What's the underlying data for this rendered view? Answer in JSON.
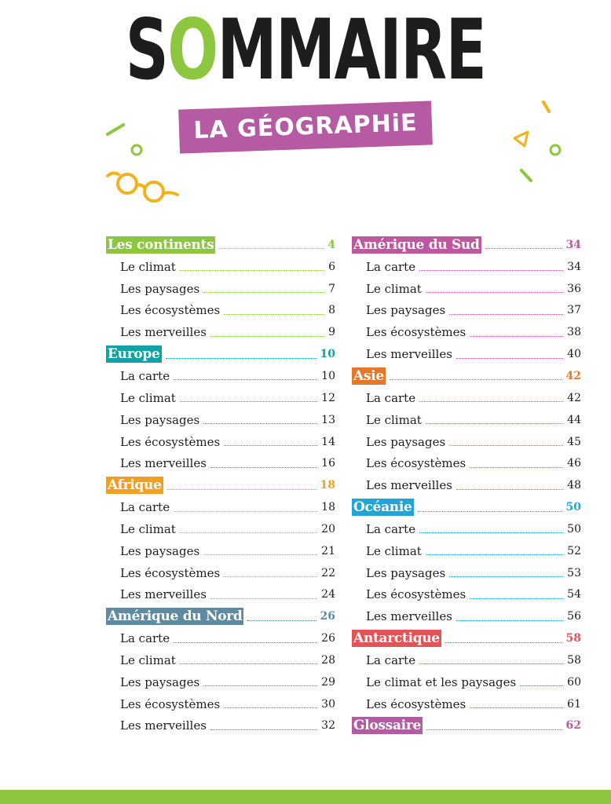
{
  "header": {
    "title_pre": "S",
    "title_accent": "O",
    "title_post": "MMAIRE",
    "subtitle": "LA GÉOGRAPHiE"
  },
  "colors": {
    "green": "#8dc63f",
    "teal": "#0fa3a5",
    "orange": "#f29f1f",
    "slate": "#5d8ba4",
    "magenta": "#c0569f",
    "burnt": "#e4772a",
    "blue": "#21a5d8",
    "red": "#e35454",
    "purple": "#b55aa3",
    "glasses": "#f2b21c"
  },
  "toc": {
    "left": [
      {
        "title": "Les continents",
        "page": "4",
        "color": "#8dc63f",
        "items": [
          {
            "label": "Le climat",
            "page": "6"
          },
          {
            "label": "Les paysages",
            "page": "7"
          },
          {
            "label": "Les écosystèmes",
            "page": "8"
          },
          {
            "label": "Les merveilles",
            "page": "9"
          }
        ]
      },
      {
        "title": "Europe",
        "page": "10",
        "color": "#0fa3a5",
        "items": [
          {
            "label": "La carte",
            "page": "10"
          },
          {
            "label": "Le climat",
            "page": "12"
          },
          {
            "label": "Les paysages",
            "page": "13"
          },
          {
            "label": "Les écosystèmes",
            "page": "14"
          },
          {
            "label": "Les merveilles",
            "page": "16"
          }
        ]
      },
      {
        "title": "Afrique",
        "page": "18",
        "color": "#f29f1f",
        "items": [
          {
            "label": "La carte",
            "page": "18"
          },
          {
            "label": "Le climat",
            "page": "20"
          },
          {
            "label": "Les paysages",
            "page": "21"
          },
          {
            "label": "Les écosystèmes",
            "page": "22"
          },
          {
            "label": "Les merveilles",
            "page": "24"
          }
        ]
      },
      {
        "title": "Amérique du Nord",
        "page": "26",
        "color": "#5d8ba4",
        "items": [
          {
            "label": "La carte",
            "page": "26"
          },
          {
            "label": "Le climat",
            "page": "28"
          },
          {
            "label": "Les paysages",
            "page": "29"
          },
          {
            "label": "Les écosystèmes",
            "page": "30"
          },
          {
            "label": "Les merveilles",
            "page": "32"
          }
        ]
      }
    ],
    "right": [
      {
        "title": "Amérique du Sud",
        "page": "34",
        "color": "#c0569f",
        "items": [
          {
            "label": "La carte",
            "page": "34"
          },
          {
            "label": "Le climat",
            "page": "36"
          },
          {
            "label": "Les paysages",
            "page": "37"
          },
          {
            "label": "Les écosystèmes",
            "page": "38"
          },
          {
            "label": "Les merveilles",
            "page": "40"
          }
        ]
      },
      {
        "title": "Asie",
        "page": "42",
        "color": "#e4772a",
        "items": [
          {
            "label": "La carte",
            "page": "42"
          },
          {
            "label": "Le climat",
            "page": "44"
          },
          {
            "label": "Les paysages",
            "page": "45"
          },
          {
            "label": "Les écosystèmes",
            "page": "46"
          },
          {
            "label": "Les merveilles",
            "page": "48"
          }
        ]
      },
      {
        "title": "Océanie",
        "page": "50",
        "color": "#21a5d8",
        "items": [
          {
            "label": "La carte",
            "page": "50"
          },
          {
            "label": "Le climat",
            "page": "52"
          },
          {
            "label": "Les paysages",
            "page": "53"
          },
          {
            "label": "Les écosystèmes",
            "page": "54"
          },
          {
            "label": "Les merveilles",
            "page": "56"
          }
        ]
      },
      {
        "title": "Antarctique",
        "page": "58",
        "color": "#e35454",
        "items": [
          {
            "label": "La carte",
            "page": "58"
          },
          {
            "label": "Le climat et les paysages",
            "page": "60"
          },
          {
            "label": "Les écosystèmes",
            "page": "61"
          }
        ]
      },
      {
        "title": "Glossaire",
        "page": "62",
        "color": "#b55aa3",
        "items": []
      }
    ]
  }
}
